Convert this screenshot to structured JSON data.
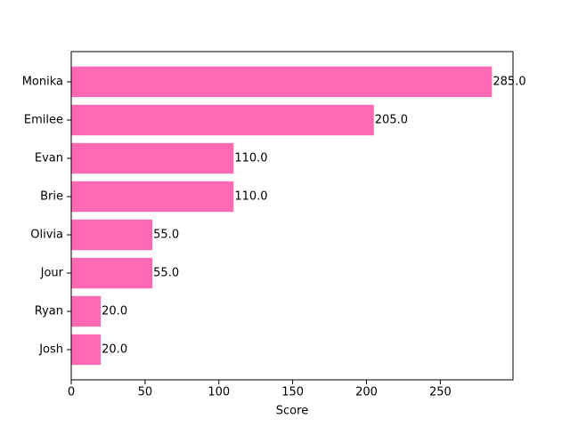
{
  "chart_data": {
    "type": "barh",
    "x_label": "Score",
    "categories": [
      "Josh",
      "Ryan",
      "Jour",
      "Olivia",
      "Brie",
      "Evan",
      "Emilee",
      "Monika"
    ],
    "values": [
      20,
      20,
      55,
      55,
      110,
      110,
      205,
      285
    ],
    "value_labels": [
      "20.0",
      "20.0",
      "55.0",
      "55.0",
      "110.0",
      "110.0",
      "205.0",
      "285.0"
    ],
    "color": "#ff69b4",
    "xlim": [
      0,
      299.25
    ],
    "xticks": [
      0,
      50,
      100,
      150,
      200,
      250
    ]
  }
}
